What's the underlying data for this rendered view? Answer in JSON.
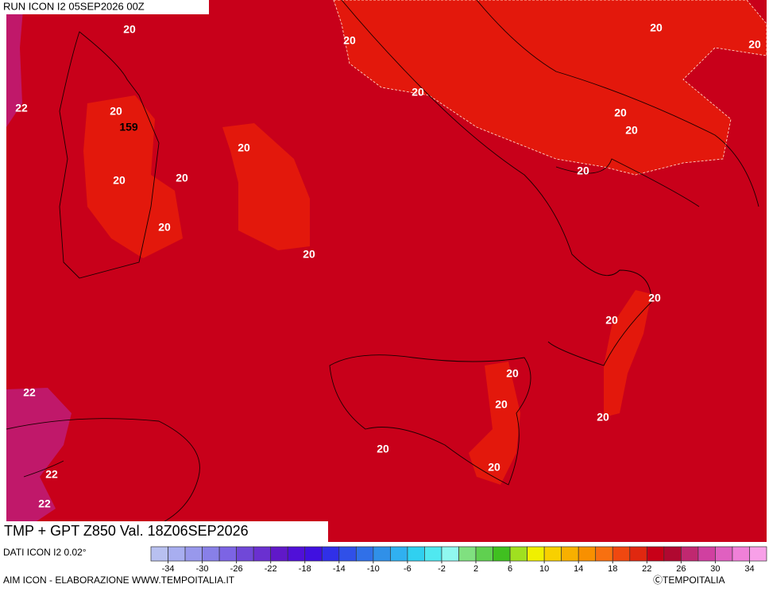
{
  "header": "RUN ICON I2 05SEP2026 00Z",
  "title": "TMP + GPT Z850 Val. 18Z06SEP2026",
  "source": "DATI ICON I2 0.02°",
  "credit": "AIM ICON - ELABORAZIONE WWW.TEMPOITALIA.IT",
  "copyright": "ⒸTEMPOITALIA",
  "contour_labels": [
    20,
    20,
    20,
    20,
    22,
    20,
    159,
    20,
    20,
    20,
    20,
    20,
    20,
    20,
    20,
    20,
    20,
    20,
    20,
    22,
    20,
    20,
    20,
    20,
    22,
    22
  ],
  "colorbar": {
    "ticks": [
      -34,
      -30,
      -26,
      -22,
      -18,
      -14,
      -10,
      -6,
      -2,
      2,
      6,
      10,
      14,
      18,
      22,
      26,
      30,
      34
    ],
    "colors": [
      "#b8c0f0",
      "#a8aef0",
      "#9898ec",
      "#8880e8",
      "#7c64e4",
      "#7048d8",
      "#6a30d0",
      "#6018c8",
      "#5010d8",
      "#4010e0",
      "#3030e8",
      "#3050e8",
      "#3070e8",
      "#3090e8",
      "#30b0f0",
      "#30d0f0",
      "#50e8f0",
      "#90f8f0",
      "#80e080",
      "#60d050",
      "#40c020",
      "#a0e020",
      "#f0f000",
      "#f8d000",
      "#f8b000",
      "#f89000",
      "#f87010",
      "#f04810",
      "#e02810",
      "#c80018",
      "#b00830",
      "#c02870",
      "#d040a0",
      "#e060c0",
      "#f080d8",
      "#f8a0e8"
    ]
  }
}
